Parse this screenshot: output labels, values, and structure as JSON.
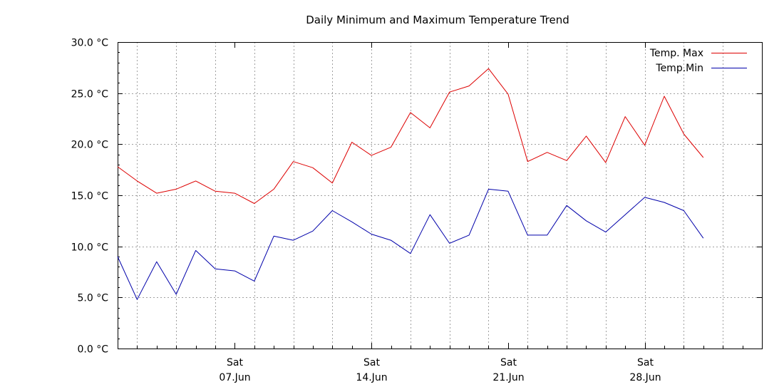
{
  "chart_data": {
    "type": "line",
    "title": "Daily Minimum and Maximum Temperature Trend",
    "xlabel": "",
    "ylabel": "",
    "ylim": [
      0,
      30
    ],
    "y_unit": "°C",
    "y_ticks": [
      0,
      5,
      10,
      15,
      20,
      25,
      30
    ],
    "y_tick_labels": [
      "0.0 °C",
      "5.0 °C",
      "10.0 °C",
      "15.0 °C",
      "20.0 °C",
      "25.0 °C",
      "30.0 °C"
    ],
    "x_dates": [
      "2025-06-01",
      "2025-06-02",
      "2025-06-03",
      "2025-06-04",
      "2025-06-05",
      "2025-06-06",
      "2025-06-07",
      "2025-06-08",
      "2025-06-09",
      "2025-06-10",
      "2025-06-11",
      "2025-06-12",
      "2025-06-13",
      "2025-06-14",
      "2025-06-15",
      "2025-06-16",
      "2025-06-17",
      "2025-06-18",
      "2025-06-19",
      "2025-06-20",
      "2025-06-21",
      "2025-06-22",
      "2025-06-23",
      "2025-06-24",
      "2025-06-25",
      "2025-06-26",
      "2025-06-27",
      "2025-06-28",
      "2025-06-29",
      "2025-06-30",
      "2025-07-01"
    ],
    "xlim": [
      "2025-06-01",
      "2025-07-04"
    ],
    "x_ticks": [
      {
        "date": "2025-06-07",
        "line1": "Sat",
        "line2": "07.Jun"
      },
      {
        "date": "2025-06-14",
        "line1": "Sat",
        "line2": "14.Jun"
      },
      {
        "date": "2025-06-21",
        "line1": "Sat",
        "line2": "21.Jun"
      },
      {
        "date": "2025-06-28",
        "line1": "Sat",
        "line2": "28.Jun"
      }
    ],
    "grid": true,
    "legend_position": "top-right",
    "series": [
      {
        "name": "Temp. Max",
        "color": "#dd0000",
        "values": [
          17.8,
          16.4,
          15.2,
          15.6,
          16.4,
          15.4,
          15.2,
          14.2,
          15.6,
          18.3,
          17.7,
          16.2,
          20.2,
          18.9,
          19.7,
          23.1,
          21.6,
          25.1,
          25.7,
          27.4,
          24.9,
          18.3,
          19.2,
          18.4,
          20.8,
          18.2,
          22.7,
          19.9,
          24.7,
          21.0,
          18.7
        ]
      },
      {
        "name": "Temp.Min",
        "color": "#0000aa",
        "values": [
          9.0,
          4.8,
          8.5,
          5.3,
          9.6,
          7.8,
          7.6,
          6.6,
          11.0,
          10.6,
          11.5,
          13.5,
          12.4,
          11.2,
          10.6,
          9.3,
          13.1,
          10.3,
          11.1,
          15.6,
          15.4,
          11.1,
          11.1,
          14.0,
          12.5,
          11.4,
          13.1,
          14.8,
          14.3,
          13.5,
          10.8
        ]
      }
    ]
  }
}
